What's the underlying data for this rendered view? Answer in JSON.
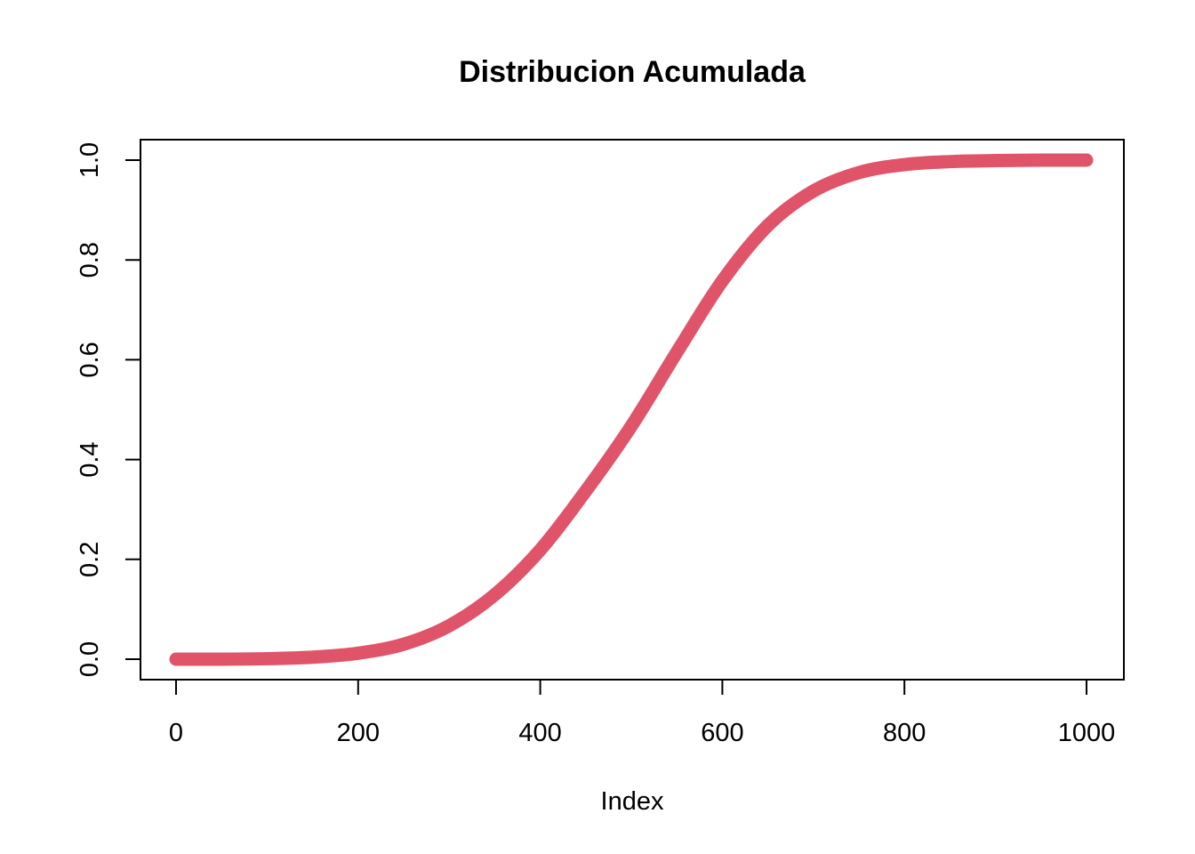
{
  "chart_data": {
    "type": "line",
    "title": "Distribucion Acumulada",
    "xlabel": "Index",
    "ylabel": "",
    "xlim": [
      0,
      1000
    ],
    "ylim": [
      0,
      1
    ],
    "x_ticks": [
      "0",
      "200",
      "400",
      "600",
      "800",
      "1000"
    ],
    "y_ticks": [
      "0.0",
      "0.2",
      "0.4",
      "0.6",
      "0.8",
      "1.0"
    ],
    "grid": false,
    "legend": "none",
    "series": [
      {
        "color": "#E0546A",
        "x": [
          0,
          50,
          100,
          150,
          200,
          250,
          300,
          350,
          400,
          450,
          500,
          550,
          600,
          650,
          700,
          750,
          800,
          850,
          900,
          950,
          1000
        ],
        "y": [
          0.0,
          0.0,
          0.001,
          0.004,
          0.012,
          0.03,
          0.067,
          0.129,
          0.219,
          0.337,
          0.467,
          0.615,
          0.758,
          0.869,
          0.938,
          0.975,
          0.991,
          0.997,
          0.999,
          1.0,
          1.0
        ]
      }
    ]
  }
}
